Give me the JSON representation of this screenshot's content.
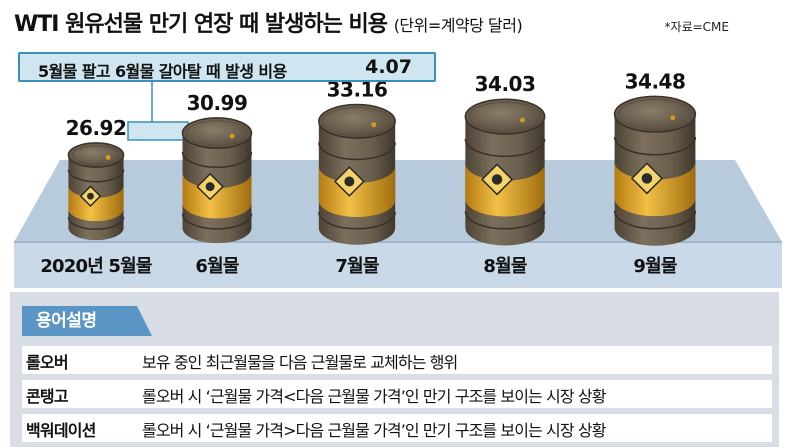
{
  "title": "WTI 원유선물 만기 연장 때 발생하는 비용",
  "unit_note": "(단위=계약당 달러)",
  "source": "*자료=CME",
  "callout": {
    "label": "5월물 팔고 6월물 갈아탈 때 발생 비용",
    "value": "4.07"
  },
  "chart_data": {
    "type": "bar",
    "categories": [
      "2020년 5월물",
      "6월물",
      "7월물",
      "8월물",
      "9월물"
    ],
    "values": [
      26.92,
      30.99,
      33.16,
      34.03,
      34.48
    ],
    "value_labels": [
      "26.92",
      "30.99",
      "33.16",
      "34.03",
      "34.48"
    ],
    "ylabel": "",
    "colors": {
      "barrel_top": "#756a58",
      "barrel_body": "#6b5f4e",
      "band": "#e2a62a",
      "platform": "#b9cde0"
    }
  },
  "glossary": {
    "heading": "용어설명",
    "items": [
      {
        "term": "롤오버",
        "definition": "보유 중인 최근월물을 다음 근월물로 교체하는 행위"
      },
      {
        "term": "콘탱고",
        "definition": "롤오버 시 ‘근월물 가격<다음 근월물 가격’인 만기 구조를 보이는 시장 상황"
      },
      {
        "term": "백워데이션",
        "definition": "롤오버 시 ‘근월물 가격>다음 근월물 가격’인 만기 구조를 보이는 시장 상황"
      }
    ]
  }
}
